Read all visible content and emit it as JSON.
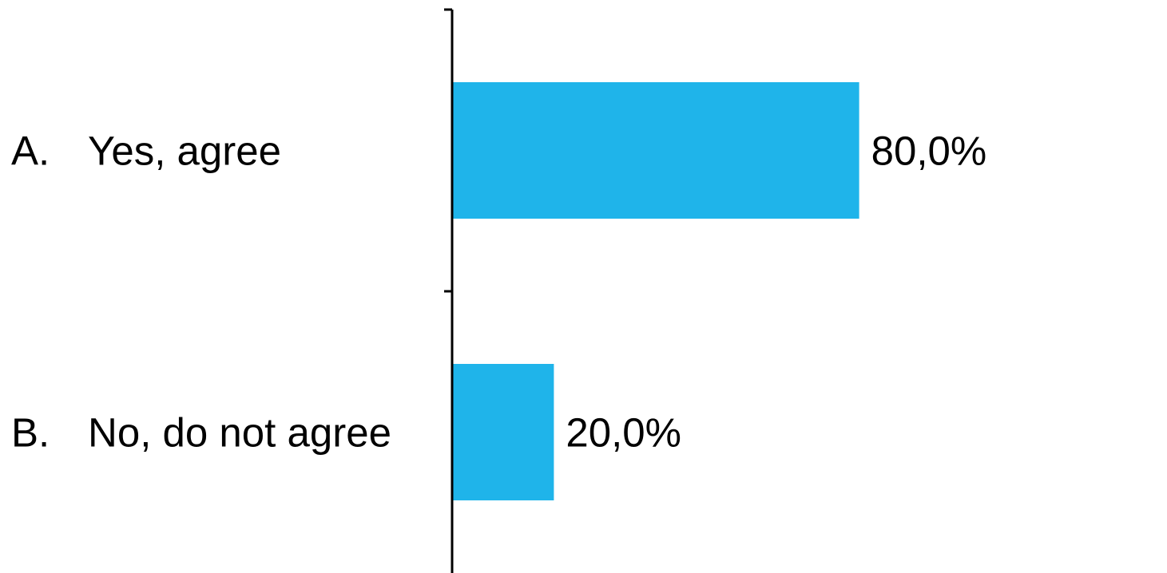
{
  "chart_data": {
    "type": "bar",
    "orientation": "horizontal",
    "categories": [
      {
        "letter": "A.",
        "label": "Yes, agree"
      },
      {
        "letter": "B.",
        "label": "No, do not agree"
      }
    ],
    "values": [
      80.0,
      20.0
    ],
    "value_labels": [
      "80,0%",
      "20,0%"
    ],
    "xlim": [
      0,
      100
    ],
    "grid": false,
    "legend": "none",
    "bar_color": "#1fb4ea",
    "axis_color": "#000000"
  }
}
